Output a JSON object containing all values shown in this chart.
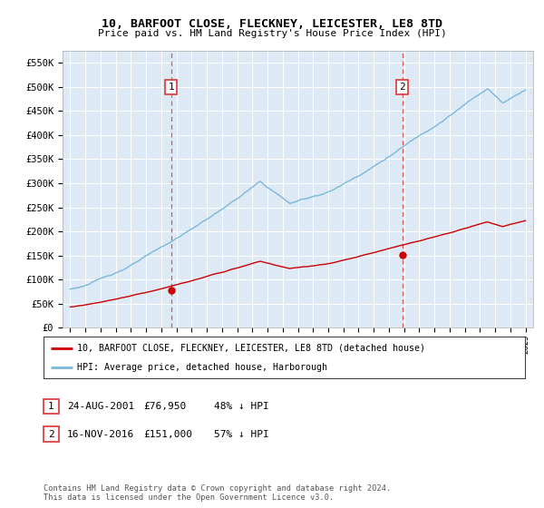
{
  "title": "10, BARFOOT CLOSE, FLECKNEY, LEICESTER, LE8 8TD",
  "subtitle": "Price paid vs. HM Land Registry's House Price Index (HPI)",
  "legend_line1": "10, BARFOOT CLOSE, FLECKNEY, LEICESTER, LE8 8TD (detached house)",
  "legend_line2": "HPI: Average price, detached house, Harborough",
  "annotation1_label": "1",
  "annotation1_date": "24-AUG-2001",
  "annotation1_price": "£76,950",
  "annotation1_hpi": "48% ↓ HPI",
  "annotation2_label": "2",
  "annotation2_date": "16-NOV-2016",
  "annotation2_price": "£151,000",
  "annotation2_hpi": "57% ↓ HPI",
  "footnote": "Contains HM Land Registry data © Crown copyright and database right 2024.\nThis data is licensed under the Open Government Licence v3.0.",
  "hpi_color": "#7ab8d9",
  "price_color": "#cc0000",
  "bg_color": "#ddeaf5",
  "grid_color": "#ffffff",
  "dashed_line_color": "#dd4444",
  "ylim_min": 0,
  "ylim_max": 575000,
  "yticks": [
    0,
    50000,
    100000,
    150000,
    200000,
    250000,
    300000,
    350000,
    400000,
    450000,
    500000,
    550000
  ],
  "xlim_min": 1994.5,
  "xlim_max": 2025.5,
  "sale1_year_f": 2001.644,
  "sale1_price": 76950,
  "sale2_year_f": 2016.877,
  "sale2_price": 151000
}
